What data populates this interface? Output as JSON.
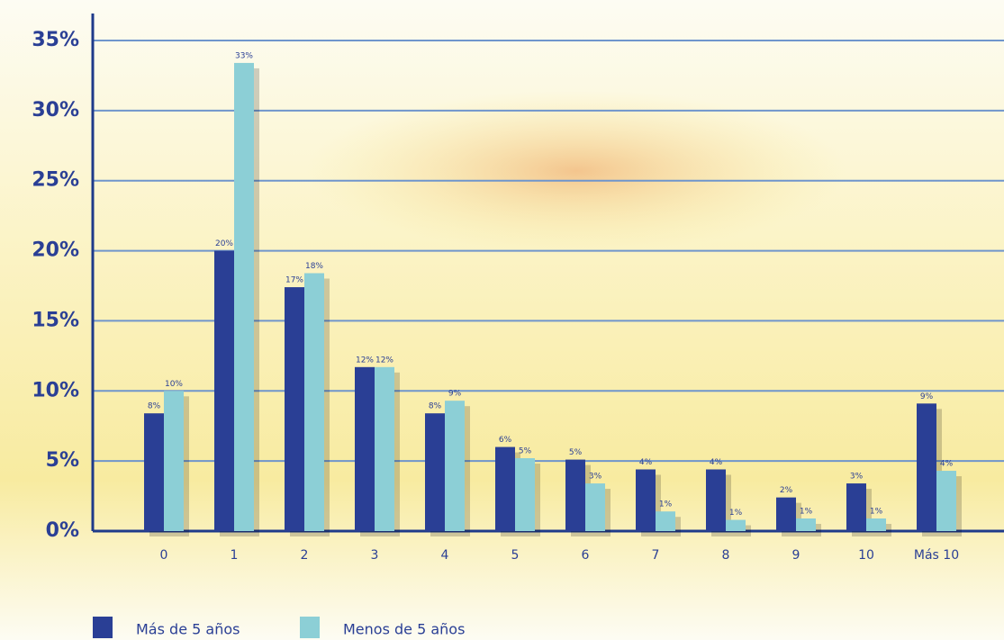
{
  "chart_data": {
    "type": "bar",
    "categories": [
      "0",
      "1",
      "2",
      "3",
      "4",
      "5",
      "6",
      "7",
      "8",
      "9",
      "10",
      "Más 10"
    ],
    "series": [
      {
        "name": "Más de 5 años",
        "color": "#2a3f95",
        "values": [
          8.4,
          20,
          17.4,
          11.7,
          8.4,
          6,
          5.1,
          4.4,
          4.4,
          2.4,
          3.4,
          9.1
        ],
        "value_labels": [
          "8%",
          "20%",
          "17%",
          "12%",
          "8%",
          "6%",
          "5%",
          "4%",
          "4%",
          "2%",
          "3%",
          "9%"
        ]
      },
      {
        "name": "Menos de 5 años",
        "color": "#8ccfd6",
        "values": [
          10,
          33.4,
          18.4,
          11.7,
          9.3,
          5.2,
          3.4,
          1.4,
          0.8,
          0.9,
          0.9,
          4.3
        ],
        "value_labels": [
          "10%",
          "33%",
          "18%",
          "12%",
          "9%",
          "5%",
          "3%",
          "1%",
          "1%",
          "1%",
          "1%",
          "4%"
        ]
      }
    ],
    "ylim": [
      0,
      35
    ],
    "yticks": [
      {
        "value": 0,
        "label": "0%"
      },
      {
        "value": 5,
        "label": "5%"
      },
      {
        "value": 10,
        "label": "10%"
      },
      {
        "value": 15,
        "label": "15%"
      },
      {
        "value": 20,
        "label": "20%"
      },
      {
        "value": 25,
        "label": "25%"
      },
      {
        "value": 30,
        "label": "30%"
      },
      {
        "value": 35,
        "label": "35%"
      }
    ],
    "grid": true
  }
}
